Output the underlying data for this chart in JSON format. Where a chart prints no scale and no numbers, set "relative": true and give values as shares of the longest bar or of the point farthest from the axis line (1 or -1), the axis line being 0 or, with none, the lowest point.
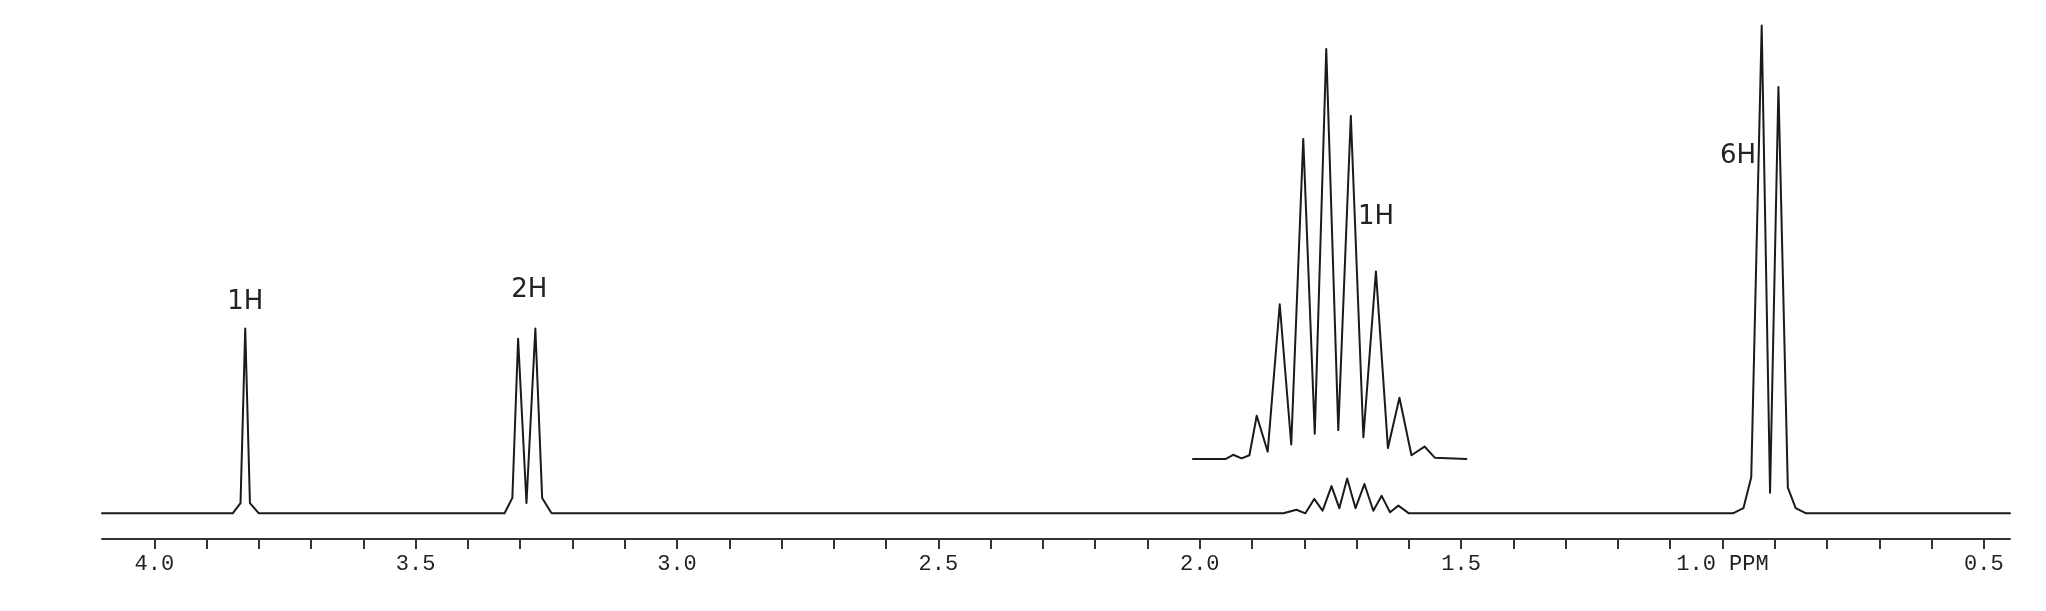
{
  "chart_data": {
    "type": "line",
    "relative": true,
    "marker": "none",
    "grid": false,
    "tick_labels": "x",
    "xlim": [
      4.1,
      0.45
    ],
    "xticks": [
      {
        "value": 4.0,
        "label": "4.0"
      },
      {
        "value": 3.9,
        "label": null
      },
      {
        "value": 3.8,
        "label": null
      },
      {
        "value": 3.7,
        "label": null
      },
      {
        "value": 3.6,
        "label": null
      },
      {
        "value": 3.5,
        "label": "3.5"
      },
      {
        "value": 3.4,
        "label": null
      },
      {
        "value": 3.3,
        "label": null
      },
      {
        "value": 3.2,
        "label": null
      },
      {
        "value": 3.1,
        "label": null
      },
      {
        "value": 3.0,
        "label": "3.0"
      },
      {
        "value": 2.9,
        "label": null
      },
      {
        "value": 2.8,
        "label": null
      },
      {
        "value": 2.7,
        "label": null
      },
      {
        "value": 2.6,
        "label": null
      },
      {
        "value": 2.5,
        "label": "2.5"
      },
      {
        "value": 2.4,
        "label": null
      },
      {
        "value": 2.3,
        "label": null
      },
      {
        "value": 2.2,
        "label": null
      },
      {
        "value": 2.1,
        "label": null
      },
      {
        "value": 2.0,
        "label": "2.0"
      },
      {
        "value": 1.9,
        "label": null
      },
      {
        "value": 1.8,
        "label": null
      },
      {
        "value": 1.7,
        "label": null
      },
      {
        "value": 1.6,
        "label": null
      },
      {
        "value": 1.5,
        "label": "1.5"
      },
      {
        "value": 1.4,
        "label": null
      },
      {
        "value": 1.3,
        "label": null
      },
      {
        "value": 1.2,
        "label": null
      },
      {
        "value": 1.1,
        "label": null
      },
      {
        "value": 1.0,
        "label": "1.0 PPM"
      },
      {
        "value": 0.9,
        "label": null
      },
      {
        "value": 0.8,
        "label": null
      },
      {
        "value": 0.7,
        "label": null
      },
      {
        "value": 0.6,
        "label": null
      },
      {
        "value": 0.5,
        "label": "0.5"
      }
    ],
    "series": [
      {
        "color": "#1a1a1a",
        "x": [
          4.1,
          3.85,
          3.835,
          3.826,
          3.817,
          3.8,
          3.33,
          3.315,
          3.304,
          3.288,
          3.271,
          3.258,
          3.24,
          1.84,
          1.815,
          1.798,
          1.781,
          1.765,
          1.748,
          1.733,
          1.718,
          1.702,
          1.685,
          1.668,
          1.652,
          1.636,
          1.62,
          1.6,
          0.98,
          0.96,
          0.945,
          0.925,
          0.909,
          0.893,
          0.875,
          0.86,
          0.84,
          0.45
        ],
        "values": [
          0.05,
          0.05,
          0.07,
          0.41,
          0.07,
          0.05,
          0.05,
          0.08,
          0.39,
          0.07,
          0.41,
          0.08,
          0.05,
          0.05,
          0.057,
          0.05,
          0.078,
          0.055,
          0.103,
          0.06,
          0.118,
          0.06,
          0.107,
          0.055,
          0.084,
          0.052,
          0.065,
          0.05,
          0.05,
          0.06,
          0.12,
          1.0,
          0.09,
          0.88,
          0.1,
          0.06,
          0.05,
          0.05
        ]
      },
      {
        "color": "#1a1a1a",
        "x": [
          2.013,
          1.95,
          1.936,
          1.92,
          1.905,
          1.891,
          1.87,
          1.847,
          1.825,
          1.802,
          1.78,
          1.758,
          1.735,
          1.711,
          1.687,
          1.663,
          1.64,
          1.618,
          1.595,
          1.57,
          1.55,
          1.49
        ],
        "values": [
          0.156,
          0.156,
          0.164,
          0.157,
          0.163,
          0.24,
          0.17,
          0.457,
          0.184,
          0.779,
          0.205,
          0.954,
          0.212,
          0.824,
          0.198,
          0.521,
          0.177,
          0.275,
          0.163,
          0.18,
          0.158,
          0.156
        ]
      }
    ],
    "annotations": [
      {
        "text": "1H",
        "x": 3.826,
        "y": 0.41
      },
      {
        "text": "2H",
        "x": 3.271,
        "y": 0.41
      },
      {
        "text": "1H",
        "x": 1.705,
        "y": 0.63
      },
      {
        "text": "6H",
        "x": 0.928,
        "y": 0.75
      }
    ]
  }
}
